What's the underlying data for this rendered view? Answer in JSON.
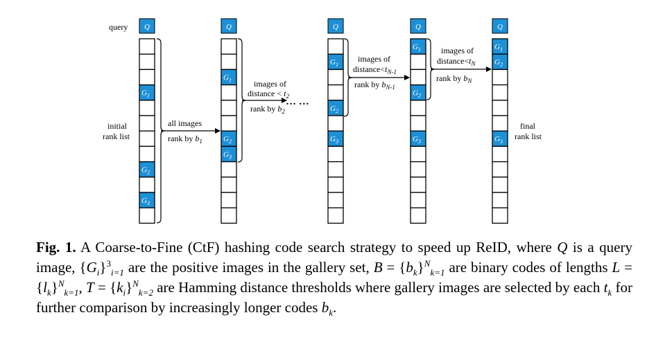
{
  "diagram": {
    "query_row_label": "query",
    "query_symbol": "Q",
    "initial_label_1": "initial",
    "initial_label_2": "rank list",
    "final_label_1": "final",
    "final_label_2": "rank list",
    "ellipsis": "… …",
    "arrow1_top": "all images",
    "arrow1_bottom_text": "rank by ",
    "arrow1_bottom_var": "b",
    "arrow1_bottom_sub": "1",
    "arrow2_top1": "images of",
    "arrow2_top2_text": "distance < ",
    "arrow2_top2_var": "t",
    "arrow2_top2_sub": "2",
    "arrow2_bottom_text": "rank by ",
    "arrow2_bottom_var": "b",
    "arrow2_bottom_sub": "2",
    "arrow3_top1": "images of",
    "arrow3_top2_text": "distance<",
    "arrow3_top2_var": "t",
    "arrow3_top2_sub": "N-1",
    "arrow3_bottom_text": "rank by ",
    "arrow3_bottom_var": "b",
    "arrow3_bottom_sub": "N-1",
    "arrow4_top1": "images of",
    "arrow4_top2_text": "distance<",
    "arrow4_top2_var": "t",
    "arrow4_top2_sub": "N",
    "arrow4_bottom_text": "rank by ",
    "arrow4_bottom_var": "b",
    "arrow4_bottom_sub": "N",
    "columns": [
      {
        "g1": 4,
        "g2": 9,
        "g3": 11
      },
      {
        "g1": 3,
        "g2": 7,
        "g3": 8
      },
      {
        "g1": 2,
        "g2": 5,
        "g3": 7
      },
      {
        "g1": 1,
        "g2": 4,
        "g3": 7
      },
      {
        "g1": 1,
        "g2": 2,
        "g3": 7
      }
    ],
    "gallery_var": "G",
    "colors": {
      "highlight": "#1e90d6",
      "line": "#000000"
    }
  },
  "caption": {
    "fig_label": "Fig. 1.",
    "t1": " A Coarse-to-Fine (CtF) hashing code search strategy to speed up ReID, where ",
    "t2": " is a query image, {",
    "t3": "}",
    "t4": " are the positive images in the gallery set, ",
    "t5": " = {",
    "t6": "}",
    "t7": " are binary codes of lengths ",
    "t8": " = {",
    "t9": "}",
    "t10": ", ",
    "t11": " = {",
    "t12": "}",
    "t13": " are Hamming distance thresholds where gallery images are selected by each ",
    "t14": " for further comparison by increasingly longer codes ",
    "t15": ".",
    "v_Q": "Q",
    "v_G": "G",
    "v_i": "i",
    "v_B": "B",
    "v_b": "b",
    "v_k": "k",
    "v_L": "L",
    "v_l": "l",
    "v_T": "T",
    "v_t": "t",
    "s_i1": "i=1",
    "s_3": "3",
    "s_k1": "k=1",
    "s_N": "N",
    "s_k2": "k=2"
  }
}
